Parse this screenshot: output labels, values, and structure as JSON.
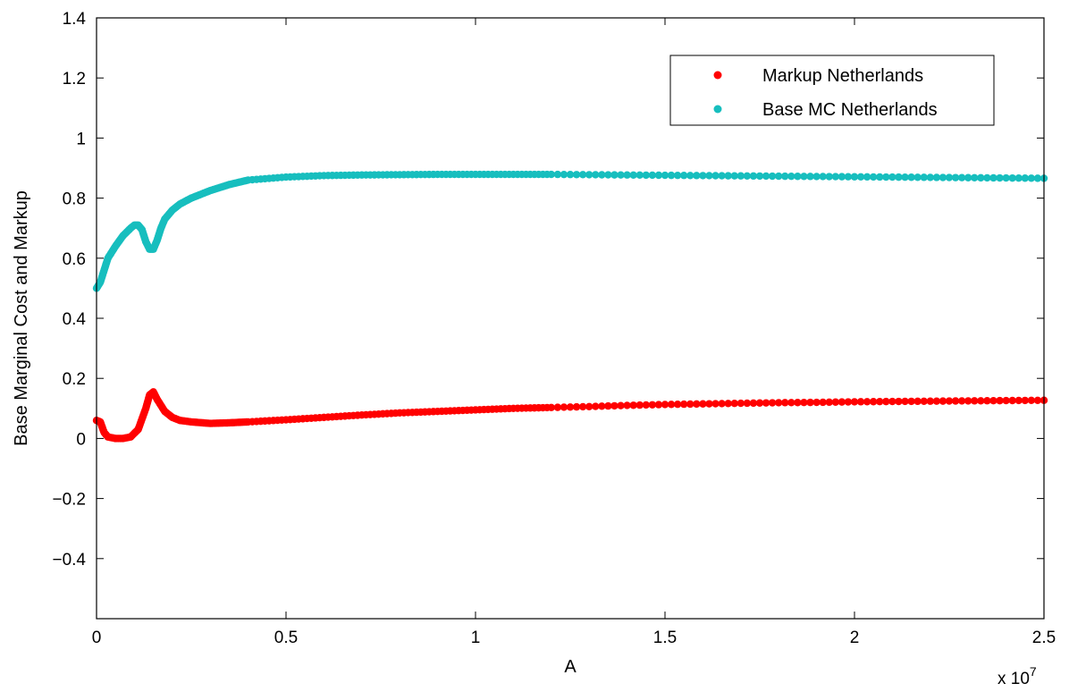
{
  "chart_data": {
    "type": "scatter",
    "title": "",
    "xlabel": "A",
    "ylabel": "Base Marginal Cost and Markup",
    "x_multiplier_label": "x 10",
    "x_multiplier_exp": "7",
    "xlim": [
      0,
      25000000
    ],
    "ylim": [
      -0.6,
      1.4
    ],
    "x_ticks": [
      0,
      5000000,
      10000000,
      15000000,
      20000000,
      25000000
    ],
    "x_tick_labels": [
      "0",
      "0.5",
      "1",
      "1.5",
      "2",
      "2.5"
    ],
    "y_ticks": [
      -0.4,
      -0.2,
      0,
      0.2,
      0.4,
      0.6,
      0.8,
      1,
      1.2,
      1.4
    ],
    "y_tick_labels": [
      "−0.4",
      "−0.2",
      "0",
      "0.2",
      "0.4",
      "0.6",
      "0.8",
      "1",
      "1.2",
      "1.4"
    ],
    "grid": false,
    "legend_position": "top-right",
    "series": [
      {
        "name": "Markup Netherlands",
        "color": "#ff0000",
        "x": [
          0,
          100000,
          200000,
          300000,
          500000,
          700000,
          900000,
          1100000,
          1300000,
          1400000,
          1500000,
          1600000,
          1800000,
          2000000,
          2200000,
          2500000,
          3000000,
          3500000,
          4000000,
          5000000,
          6000000,
          7000000,
          8000000,
          9000000,
          10000000,
          11000000,
          12000000,
          13000000,
          14000000,
          15000000,
          16000000,
          17000000,
          18000000,
          19000000,
          20000000,
          21000000,
          22000000,
          23000000,
          24000000,
          25000000
        ],
        "y": [
          0.06,
          0.055,
          0.02,
          0.005,
          0.0,
          0.0,
          0.005,
          0.03,
          0.1,
          0.145,
          0.155,
          0.13,
          0.09,
          0.07,
          0.06,
          0.055,
          0.05,
          0.052,
          0.055,
          0.062,
          0.07,
          0.078,
          0.085,
          0.09,
          0.095,
          0.1,
          0.103,
          0.106,
          0.11,
          0.113,
          0.115,
          0.117,
          0.119,
          0.12,
          0.122,
          0.123,
          0.124,
          0.125,
          0.126,
          0.127
        ]
      },
      {
        "name": "Base MC Netherlands",
        "color": "#17bebe",
        "x": [
          0,
          100000,
          200000,
          300000,
          500000,
          700000,
          900000,
          1000000,
          1100000,
          1200000,
          1300000,
          1400000,
          1500000,
          1600000,
          1700000,
          1800000,
          2000000,
          2200000,
          2500000,
          3000000,
          3500000,
          4000000,
          5000000,
          6000000,
          7000000,
          8000000,
          9000000,
          10000000,
          11000000,
          12000000,
          13000000,
          14000000,
          15000000,
          16000000,
          17000000,
          18000000,
          19000000,
          20000000,
          21000000,
          22000000,
          23000000,
          24000000,
          25000000
        ],
        "y": [
          0.5,
          0.52,
          0.56,
          0.6,
          0.64,
          0.675,
          0.7,
          0.71,
          0.71,
          0.695,
          0.655,
          0.63,
          0.63,
          0.66,
          0.7,
          0.73,
          0.76,
          0.78,
          0.8,
          0.825,
          0.845,
          0.86,
          0.87,
          0.875,
          0.877,
          0.878,
          0.879,
          0.879,
          0.879,
          0.879,
          0.878,
          0.877,
          0.876,
          0.875,
          0.874,
          0.873,
          0.872,
          0.871,
          0.87,
          0.869,
          0.868,
          0.867,
          0.866
        ]
      }
    ]
  }
}
